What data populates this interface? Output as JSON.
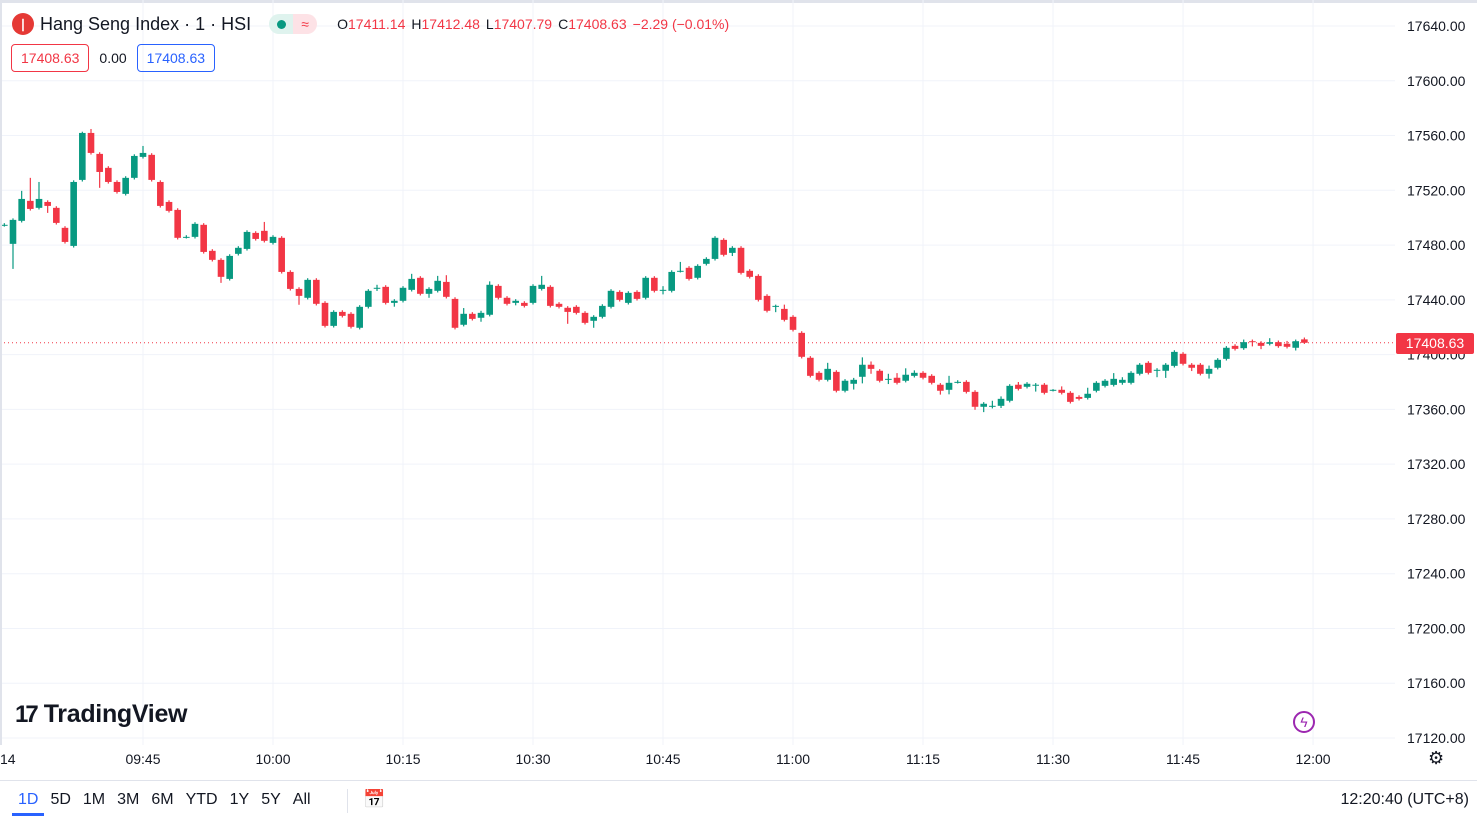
{
  "header": {
    "symbol_title": "Hang Seng Index · 1 · HSI",
    "logo_letter": "丨",
    "market_status_icon": "dot-icon",
    "delay_icon": "wave-icon",
    "ohlc": {
      "o_label": "O",
      "o": "17411.14",
      "h_label": "H",
      "h": "17412.48",
      "l_label": "L",
      "l": "17407.79",
      "c_label": "C",
      "c": "17408.63",
      "change": "−2.29 (−0.01%)"
    },
    "bid": "17408.63",
    "spread": "0.00",
    "ask": "17408.63"
  },
  "branding": {
    "logo_text": "TradingView"
  },
  "price_axis": {
    "current_price_label": "17408.63"
  },
  "bottom_bar": {
    "ranges": [
      "1D",
      "5D",
      "1M",
      "3M",
      "6M",
      "YTD",
      "1Y",
      "5Y",
      "All"
    ],
    "active_range": "1D",
    "clock": "12:20:40 (UTC+8)"
  },
  "colors": {
    "up": "#089981",
    "down": "#f23645",
    "accent": "#2962ff",
    "grid": "#f0f3fa"
  },
  "chart_data": {
    "type": "candlestick",
    "interval_minutes": 1,
    "x_start": "09:29",
    "ylim": [
      17120,
      17640
    ],
    "y_ticks": [
      17640,
      17600,
      17560,
      17520,
      17480,
      17440,
      17400,
      17360,
      17320,
      17280,
      17240,
      17200,
      17160,
      17120
    ],
    "x_ticks": [
      {
        "label": "14",
        "time": "09:30"
      },
      {
        "label": "09:45",
        "time": "09:45"
      },
      {
        "label": "10:00",
        "time": "10:00"
      },
      {
        "label": "10:15",
        "time": "10:15"
      },
      {
        "label": "10:30",
        "time": "10:30"
      },
      {
        "label": "10:45",
        "time": "10:45"
      },
      {
        "label": "11:00",
        "time": "11:00"
      },
      {
        "label": "11:15",
        "time": "11:15"
      },
      {
        "label": "11:30",
        "time": "11:30"
      },
      {
        "label": "11:45",
        "time": "11:45"
      },
      {
        "label": "12:00",
        "time": "12:00"
      }
    ],
    "last_price": 17408.63,
    "grid": true,
    "candles_ohlc": [
      [
        17494.8,
        17496.0,
        17493.5,
        17494.8
      ],
      [
        17480.9,
        17499.5,
        17462.6,
        17498.4
      ],
      [
        17497.7,
        17519.6,
        17496.5,
        17513.7
      ],
      [
        17512.3,
        17529.1,
        17505.2,
        17506.4
      ],
      [
        17507.2,
        17526.1,
        17506.0,
        17513.7
      ],
      [
        17511.5,
        17512.7,
        17503.5,
        17508.6
      ],
      [
        17507.2,
        17508.4,
        17495.0,
        17496.2
      ],
      [
        17492.6,
        17493.8,
        17481.1,
        17482.3
      ],
      [
        17479.4,
        17527.3,
        17478.2,
        17526.1
      ],
      [
        17527.6,
        17562.8,
        17526.4,
        17561.9
      ],
      [
        17561.9,
        17564.8,
        17546.1,
        17547.3
      ],
      [
        17546.6,
        17547.8,
        17521.8,
        17533.4
      ],
      [
        17536.4,
        17537.6,
        17524.9,
        17526.1
      ],
      [
        17526.1,
        17527.3,
        17517.6,
        17518.8
      ],
      [
        17517.4,
        17530.3,
        17516.2,
        17529.1
      ],
      [
        17529.1,
        17546.3,
        17527.9,
        17545.1
      ],
      [
        17544.4,
        17552.4,
        17543.2,
        17547.3
      ],
      [
        17545.9,
        17547.1,
        17526.4,
        17527.6
      ],
      [
        17526.1,
        17527.3,
        17507.4,
        17508.6
      ],
      [
        17511.5,
        17512.7,
        17503.8,
        17505.0
      ],
      [
        17505.7,
        17506.9,
        17484.1,
        17485.3
      ],
      [
        17486.0,
        17487.2,
        17484.8,
        17486.0
      ],
      [
        17486.0,
        17496.7,
        17484.8,
        17495.5
      ],
      [
        17494.8,
        17496.0,
        17473.8,
        17475.0
      ],
      [
        17475.8,
        17477.0,
        17468.0,
        17469.2
      ],
      [
        17469.2,
        17470.4,
        17452.4,
        17456.8
      ],
      [
        17455.3,
        17473.3,
        17454.1,
        17472.1
      ],
      [
        17473.6,
        17479.2,
        17472.4,
        17478.0
      ],
      [
        17477.2,
        17490.8,
        17476.0,
        17489.6
      ],
      [
        17488.9,
        17490.1,
        17483.3,
        17484.5
      ],
      [
        17490.4,
        17496.9,
        17481.9,
        17483.1
      ],
      [
        17481.6,
        17487.2,
        17480.4,
        17486.0
      ],
      [
        17485.3,
        17486.5,
        17459.2,
        17460.4
      ],
      [
        17460.4,
        17461.6,
        17446.8,
        17448.0
      ],
      [
        17448.0,
        17449.2,
        17436.4,
        17442.9
      ],
      [
        17441.5,
        17455.8,
        17440.3,
        17454.6
      ],
      [
        17454.6,
        17455.8,
        17435.9,
        17437.1
      ],
      [
        17437.8,
        17439.0,
        17419.8,
        17421.0
      ],
      [
        17421.0,
        17432.4,
        17419.8,
        17431.2
      ],
      [
        17431.2,
        17432.4,
        17427.1,
        17428.3
      ],
      [
        17429.8,
        17431.0,
        17419.1,
        17420.3
      ],
      [
        17419.6,
        17436.1,
        17418.4,
        17434.9
      ],
      [
        17434.9,
        17447.8,
        17433.7,
        17446.6
      ],
      [
        17448.8,
        17451.0,
        17446.5,
        17448.8
      ],
      [
        17449.5,
        17450.7,
        17436.6,
        17437.8
      ],
      [
        17437.8,
        17440.5,
        17435.0,
        17439.3
      ],
      [
        17439.3,
        17450.0,
        17438.1,
        17448.8
      ],
      [
        17447.3,
        17459.0,
        17446.1,
        17455.3
      ],
      [
        17456.1,
        17457.3,
        17443.2,
        17444.4
      ],
      [
        17444.4,
        17449.2,
        17441.5,
        17448.0
      ],
      [
        17446.6,
        17457.5,
        17445.4,
        17453.9
      ],
      [
        17453.1,
        17458.0,
        17441.0,
        17442.2
      ],
      [
        17440.7,
        17441.9,
        17418.4,
        17419.6
      ],
      [
        17421.8,
        17434.0,
        17420.6,
        17429.8
      ],
      [
        17429.8,
        17431.0,
        17424.9,
        17426.1
      ],
      [
        17426.9,
        17432.0,
        17424.0,
        17430.5
      ],
      [
        17429.1,
        17453.5,
        17427.9,
        17451.0
      ],
      [
        17450.2,
        17451.4,
        17440.3,
        17441.5
      ],
      [
        17441.5,
        17442.7,
        17435.9,
        17437.1
      ],
      [
        17437.8,
        17440.5,
        17436.0,
        17439.3
      ],
      [
        17437.8,
        17439.0,
        17434.4,
        17435.6
      ],
      [
        17437.8,
        17451.4,
        17436.6,
        17450.2
      ],
      [
        17448.0,
        17457.5,
        17446.8,
        17451.0
      ],
      [
        17449.5,
        17450.7,
        17434.4,
        17435.6
      ],
      [
        17437.1,
        17438.3,
        17433.7,
        17434.9
      ],
      [
        17434.2,
        17435.4,
        17422.5,
        17431.2
      ],
      [
        17434.9,
        17436.1,
        17429.3,
        17430.5
      ],
      [
        17430.5,
        17431.7,
        17422.0,
        17423.2
      ],
      [
        17424.7,
        17428.8,
        17419.6,
        17427.6
      ],
      [
        17427.6,
        17436.8,
        17426.4,
        17435.6
      ],
      [
        17434.9,
        17447.8,
        17433.7,
        17446.6
      ],
      [
        17445.8,
        17447.0,
        17438.8,
        17440.0
      ],
      [
        17437.8,
        17446.3,
        17436.6,
        17445.1
      ],
      [
        17445.8,
        17447.0,
        17439.5,
        17440.7
      ],
      [
        17441.5,
        17457.3,
        17440.3,
        17456.1
      ],
      [
        17456.1,
        17457.3,
        17445.4,
        17446.6
      ],
      [
        17447.3,
        17450.0,
        17444.0,
        17447.3
      ],
      [
        17446.6,
        17461.6,
        17445.4,
        17460.4
      ],
      [
        17461.2,
        17467.7,
        17460.0,
        17461.2
      ],
      [
        17463.4,
        17464.6,
        17454.1,
        17455.3
      ],
      [
        17456.1,
        17466.0,
        17454.9,
        17464.8
      ],
      [
        17466.3,
        17471.1,
        17465.1,
        17469.9
      ],
      [
        17469.9,
        17486.5,
        17468.7,
        17485.3
      ],
      [
        17483.8,
        17485.0,
        17471.7,
        17472.9
      ],
      [
        17474.3,
        17479.2,
        17472.0,
        17478.0
      ],
      [
        17478.0,
        17479.2,
        17458.5,
        17459.7
      ],
      [
        17461.2,
        17462.4,
        17455.6,
        17456.8
      ],
      [
        17457.5,
        17458.7,
        17438.8,
        17440.0
      ],
      [
        17442.9,
        17444.1,
        17430.8,
        17432.0
      ],
      [
        17435.6,
        17436.5,
        17431.0,
        17435.6
      ],
      [
        17433.4,
        17436.5,
        17424.2,
        17425.4
      ],
      [
        17427.6,
        17428.8,
        17416.9,
        17418.1
      ],
      [
        17415.9,
        17417.1,
        17397.2,
        17398.4
      ],
      [
        17397.7,
        17398.9,
        17383.3,
        17384.5
      ],
      [
        17386.7,
        17387.9,
        17380.4,
        17381.6
      ],
      [
        17381.6,
        17394.0,
        17380.4,
        17389.6
      ],
      [
        17387.4,
        17388.6,
        17372.4,
        17373.6
      ],
      [
        17373.6,
        17382.1,
        17372.4,
        17380.9
      ],
      [
        17378.7,
        17383.0,
        17374.5,
        17381.6
      ],
      [
        17383.8,
        17398.0,
        17379.0,
        17392.6
      ],
      [
        17392.6,
        17395.0,
        17386.0,
        17389.6
      ],
      [
        17388.2,
        17389.4,
        17379.7,
        17380.9
      ],
      [
        17382.3,
        17386.0,
        17378.5,
        17382.3
      ],
      [
        17383.1,
        17386.5,
        17378.2,
        17379.4
      ],
      [
        17380.9,
        17390.0,
        17379.7,
        17385.3
      ],
      [
        17384.5,
        17388.5,
        17383.3,
        17386.7
      ],
      [
        17386.7,
        17387.9,
        17381.9,
        17383.1
      ],
      [
        17384.5,
        17385.7,
        17378.2,
        17379.4
      ],
      [
        17378.0,
        17379.2,
        17370.8,
        17373.6
      ],
      [
        17374.3,
        17384.5,
        17371.0,
        17379.4
      ],
      [
        17380.1,
        17381.3,
        17378.9,
        17380.1
      ],
      [
        17380.1,
        17381.3,
        17371.6,
        17372.8
      ],
      [
        17372.8,
        17374.0,
        17359.7,
        17361.9
      ],
      [
        17361.9,
        17365.3,
        17358.0,
        17364.1
      ],
      [
        17361.9,
        17366.3,
        17360.7,
        17362.6
      ],
      [
        17362.6,
        17369.5,
        17361.0,
        17367.7
      ],
      [
        17366.3,
        17378.4,
        17365.1,
        17377.2
      ],
      [
        17378.0,
        17380.0,
        17373.8,
        17375.0
      ],
      [
        17376.5,
        17379.9,
        17375.3,
        17378.7
      ],
      [
        17378.0,
        17379.2,
        17373.0,
        17378.0
      ],
      [
        17378.0,
        17379.2,
        17370.9,
        17372.1
      ],
      [
        17373.6,
        17374.8,
        17373.1,
        17374.3
      ],
      [
        17374.3,
        17376.8,
        17370.9,
        17372.1
      ],
      [
        17372.1,
        17373.3,
        17364.3,
        17365.5
      ],
      [
        17369.1,
        17370.3,
        17366.5,
        17367.7
      ],
      [
        17368.4,
        17375.8,
        17367.2,
        17371.4
      ],
      [
        17373.6,
        17380.6,
        17372.4,
        17379.4
      ],
      [
        17377.2,
        17382.1,
        17376.0,
        17380.9
      ],
      [
        17377.9,
        17386.5,
        17376.7,
        17382.3
      ],
      [
        17379.4,
        17383.5,
        17378.0,
        17381.6
      ],
      [
        17379.4,
        17387.9,
        17378.2,
        17386.7
      ],
      [
        17386.0,
        17393.8,
        17384.8,
        17392.6
      ],
      [
        17394.0,
        17395.2,
        17385.5,
        17386.7
      ],
      [
        17388.9,
        17390.1,
        17383.5,
        17388.9
      ],
      [
        17388.2,
        17393.8,
        17383.0,
        17392.6
      ],
      [
        17391.8,
        17403.2,
        17390.6,
        17402.0
      ],
      [
        17400.6,
        17401.8,
        17392.1,
        17393.3
      ],
      [
        17392.6,
        17393.8,
        17388.0,
        17390.4
      ],
      [
        17392.6,
        17393.8,
        17384.8,
        17386.0
      ],
      [
        17386.0,
        17392.0,
        17382.5,
        17389.6
      ],
      [
        17390.4,
        17397.4,
        17389.2,
        17396.2
      ],
      [
        17396.9,
        17406.2,
        17395.7,
        17405.0
      ],
      [
        17406.4,
        17407.6,
        17403.0,
        17404.2
      ],
      [
        17404.7,
        17411.0,
        17403.5,
        17409.1
      ],
      [
        17409.8,
        17411.0,
        17406.0,
        17409.1
      ],
      [
        17408.6,
        17409.8,
        17404.0,
        17406.4
      ],
      [
        17407.9,
        17412.0,
        17406.7,
        17409.1
      ],
      [
        17409.1,
        17410.3,
        17405.0,
        17406.2
      ],
      [
        17407.9,
        17410.0,
        17404.5,
        17405.7
      ],
      [
        17405.0,
        17411.0,
        17403.0,
        17409.8
      ],
      [
        17411.14,
        17412.48,
        17407.79,
        17408.63
      ]
    ]
  }
}
